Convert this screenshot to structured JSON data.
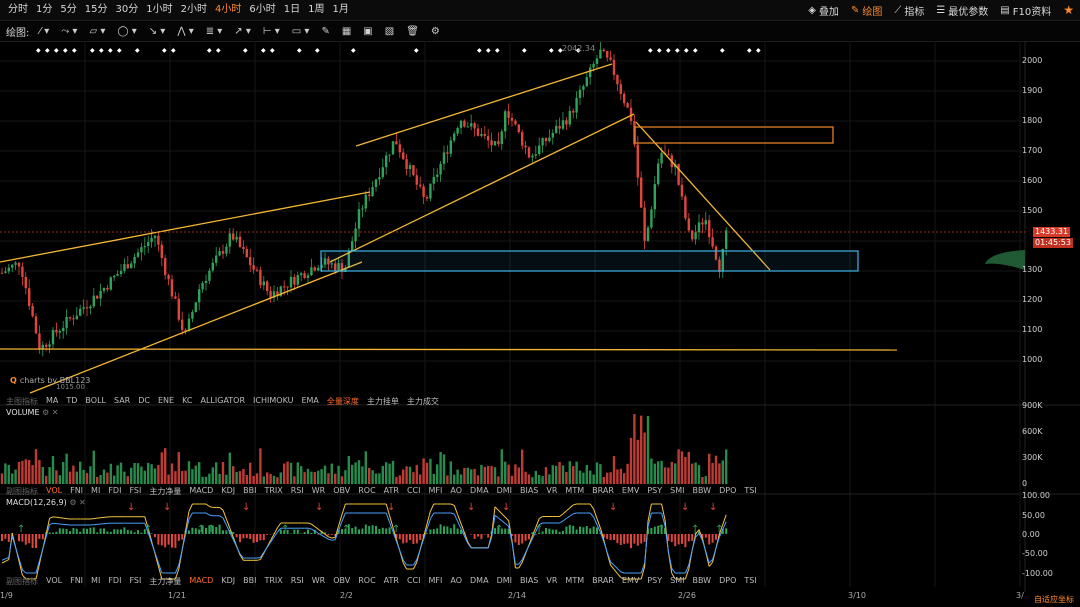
{
  "timeframes": [
    "分时",
    "1分",
    "5分",
    "15分",
    "30分",
    "1小时",
    "2小时",
    "4小时",
    "6小时",
    "1日",
    "1周",
    "1月"
  ],
  "active_timeframe": "4小时",
  "right_tools": {
    "overlay": "叠加",
    "draw": "绘图",
    "indicators": "指标",
    "best_params": "最优参数",
    "f10": "F10资料"
  },
  "draw_toolbar": {
    "label": "绘图:"
  },
  "main_chart": {
    "y_labels": [
      "2000",
      "1900",
      "1800",
      "1700",
      "1600",
      "1500",
      "1300",
      "1200",
      "1100",
      "1000"
    ],
    "high_label": "2042.34",
    "low_label": "1015.00",
    "price_tag": "1433.31",
    "countdown_tag": "01:45:53",
    "watermark": "charts by BBL123"
  },
  "main_indicators": {
    "label": "主图指标",
    "items": [
      "MA",
      "TD",
      "BOLL",
      "SAR",
      "DC",
      "ENE",
      "KC",
      "ALLIGATOR",
      "ICHIMOKU",
      "EMA"
    ],
    "extra": [
      "全量深度",
      "主力挂单",
      "主力成交"
    ],
    "active": "全量深度"
  },
  "volume_panel": {
    "title": "VOLUME",
    "y_labels": [
      "900K",
      "600K",
      "300K",
      "0"
    ]
  },
  "sub_indicators": {
    "label": "副图指标",
    "items": [
      "VOL",
      "FNI",
      "MI",
      "FDI",
      "FSI",
      "主力净量",
      "MACD",
      "KDJ",
      "BBI",
      "TRIX",
      "RSI",
      "WR",
      "OBV",
      "ROC",
      "ATR",
      "CCI",
      "MFI",
      "AO",
      "DMA",
      "DMI",
      "BIAS",
      "VR",
      "MTM",
      "BRAR",
      "EMV",
      "PSY",
      "SMI",
      "BBW",
      "DPO",
      "TSI"
    ]
  },
  "macd_panel": {
    "title": "MACD(12,26,9)",
    "y_labels": [
      "100.00",
      "50.00",
      "0.00",
      "-50.00",
      "-100.00"
    ]
  },
  "x_labels": [
    "1/9",
    "1/21",
    "2/2",
    "2/14",
    "2/26",
    "3/10",
    "3/"
  ],
  "auto_axis": "自适应坐标",
  "colors": {
    "up": "#2ea35a",
    "down": "#e0453e",
    "trendline": "#f2b632",
    "accent": "#ff8a2a",
    "zone_blue": "#3fb4e6"
  }
}
